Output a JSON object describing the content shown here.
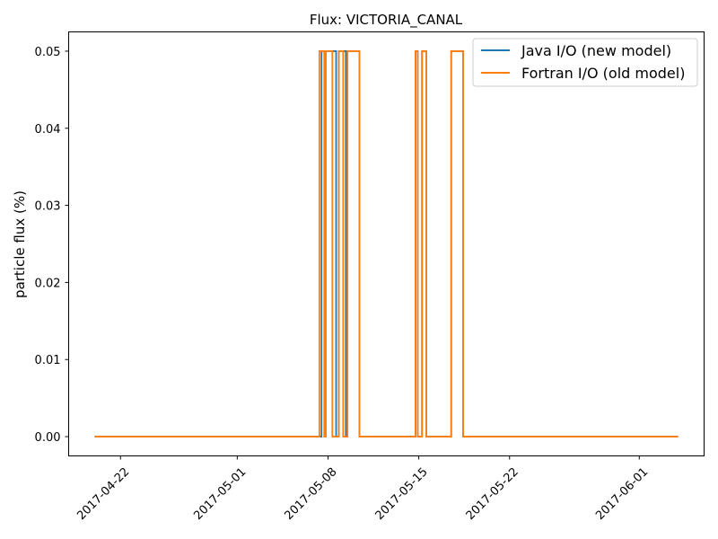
{
  "chart_data": {
    "type": "line",
    "title": "Flux: VICTORIA_CANAL",
    "xlabel": "",
    "ylabel": "particle flux (%)",
    "xlim": [
      "2017-04-18T00:00",
      "2017-06-06T00:00"
    ],
    "ylim": [
      -0.0025,
      0.0525
    ],
    "x_ticks": [
      "2017-04-22",
      "2017-05-01",
      "2017-05-08",
      "2017-05-15",
      "2017-05-22",
      "2017-06-01"
    ],
    "y_ticks": [
      0.0,
      0.01,
      0.02,
      0.03,
      0.04,
      0.05
    ],
    "y_tick_labels": [
      "0.00",
      "0.01",
      "0.02",
      "0.03",
      "0.04",
      "0.05"
    ],
    "grid": false,
    "legend_position": "top-right",
    "series": [
      {
        "name": "Java I/O (new model)",
        "color": "#1f77b4",
        "step": "post",
        "points": [
          [
            "2017-04-20T00:00",
            0.0
          ],
          [
            "2017-05-07T12:00",
            0.05
          ],
          [
            "2017-05-07T18:00",
            0.0
          ],
          [
            "2017-05-07T20:00",
            0.05
          ],
          [
            "2017-05-08T15:00",
            0.0
          ],
          [
            "2017-05-08T20:00",
            0.05
          ],
          [
            "2017-05-09T09:00",
            0.0
          ],
          [
            "2017-05-09T12:00",
            0.05
          ],
          [
            "2017-05-10T10:00",
            0.0
          ],
          [
            "2017-05-14T18:00",
            0.05
          ],
          [
            "2017-05-14T22:00",
            0.0
          ],
          [
            "2017-05-15T06:00",
            0.05
          ],
          [
            "2017-05-15T14:00",
            0.0
          ],
          [
            "2017-05-17T12:00",
            0.05
          ],
          [
            "2017-05-18T10:00",
            0.0
          ],
          [
            "2017-06-04T00:00",
            0.0
          ]
        ]
      },
      {
        "name": "Fortran I/O (old model)",
        "color": "#ff7f0e",
        "step": "post",
        "points": [
          [
            "2017-04-20T00:00",
            0.0
          ],
          [
            "2017-05-07T08:00",
            0.05
          ],
          [
            "2017-05-07T17:00",
            0.0
          ],
          [
            "2017-05-07T20:00",
            0.05
          ],
          [
            "2017-05-08T08:00",
            0.0
          ],
          [
            "2017-05-08T20:00",
            0.05
          ],
          [
            "2017-05-09T04:00",
            0.0
          ],
          [
            "2017-05-09T12:00",
            0.05
          ],
          [
            "2017-05-10T10:00",
            0.0
          ],
          [
            "2017-05-14T18:00",
            0.05
          ],
          [
            "2017-05-14T22:00",
            0.0
          ],
          [
            "2017-05-15T06:00",
            0.05
          ],
          [
            "2017-05-15T14:00",
            0.0
          ],
          [
            "2017-05-17T12:00",
            0.05
          ],
          [
            "2017-05-18T10:00",
            0.0
          ],
          [
            "2017-06-04T00:00",
            0.0
          ]
        ]
      }
    ]
  }
}
